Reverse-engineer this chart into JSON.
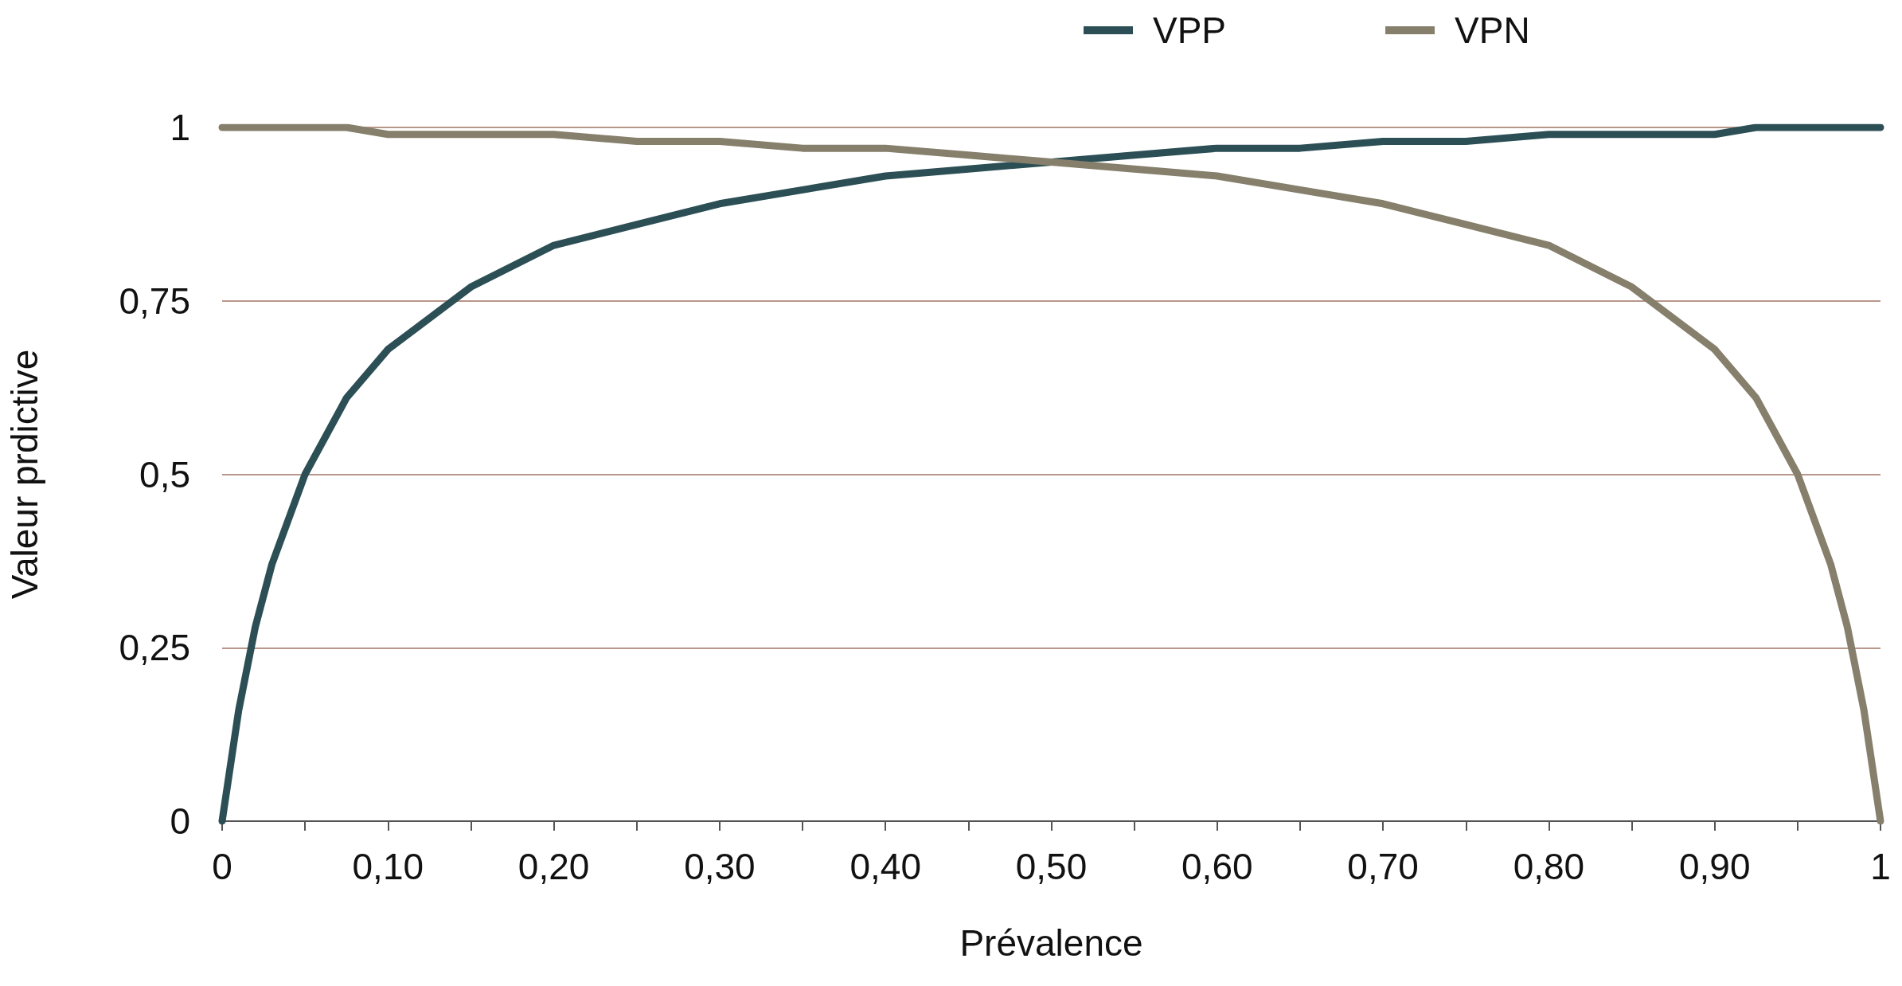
{
  "chart_data": {
    "type": "line",
    "xlabel": "Prévalence",
    "ylabel": "Valeur prdictive",
    "x": [
      0,
      0.01,
      0.02,
      0.03,
      0.05,
      0.075,
      0.1,
      0.15,
      0.2,
      0.25,
      0.3,
      0.35,
      0.4,
      0.45,
      0.5,
      0.55,
      0.6,
      0.65,
      0.7,
      0.75,
      0.8,
      0.85,
      0.9,
      0.925,
      0.95,
      0.97,
      0.98,
      0.99,
      1
    ],
    "series": [
      {
        "name": "VPP",
        "color": "#2c4f55",
        "values": [
          0,
          0.16,
          0.28,
          0.37,
          0.5,
          0.61,
          0.68,
          0.77,
          0.83,
          0.86,
          0.89,
          0.91,
          0.93,
          0.94,
          0.95,
          0.96,
          0.97,
          0.97,
          0.98,
          0.98,
          0.99,
          0.99,
          0.99,
          1,
          1,
          1,
          1,
          1,
          1
        ]
      },
      {
        "name": "VPN",
        "color": "#857f6b",
        "values": [
          1,
          1,
          1,
          1,
          1,
          1,
          0.99,
          0.99,
          0.99,
          0.98,
          0.98,
          0.97,
          0.97,
          0.96,
          0.95,
          0.94,
          0.93,
          0.91,
          0.89,
          0.86,
          0.83,
          0.77,
          0.68,
          0.61,
          0.5,
          0.37,
          0.28,
          0.16,
          0
        ]
      }
    ],
    "xlim": [
      0,
      1
    ],
    "xticks": [
      {
        "value": 0,
        "label": "0"
      },
      {
        "value": 0.05,
        "label": null
      },
      {
        "value": 0.1,
        "label": "0,10"
      },
      {
        "value": 0.15,
        "label": null
      },
      {
        "value": 0.2,
        "label": "0,20"
      },
      {
        "value": 0.25,
        "label": null
      },
      {
        "value": 0.3,
        "label": "0,30"
      },
      {
        "value": 0.35,
        "label": null
      },
      {
        "value": 0.4,
        "label": "0,40"
      },
      {
        "value": 0.45,
        "label": null
      },
      {
        "value": 0.5,
        "label": "0,50"
      },
      {
        "value": 0.55,
        "label": null
      },
      {
        "value": 0.6,
        "label": "0,60"
      },
      {
        "value": 0.65,
        "label": null
      },
      {
        "value": 0.7,
        "label": "0,70"
      },
      {
        "value": 0.75,
        "label": null
      },
      {
        "value": 0.8,
        "label": "0,80"
      },
      {
        "value": 0.85,
        "label": null
      },
      {
        "value": 0.9,
        "label": "0,90"
      },
      {
        "value": 0.95,
        "label": null
      },
      {
        "value": 1,
        "label": "1"
      }
    ],
    "ylim": [
      0,
      1
    ],
    "yticks": [
      {
        "value": 0,
        "label": "0"
      },
      {
        "value": 0.25,
        "label": "0,25"
      },
      {
        "value": 0.5,
        "label": "0,5"
      },
      {
        "value": 0.75,
        "label": "0,75"
      },
      {
        "value": 1,
        "label": "1"
      }
    ],
    "grid": "y",
    "legend": "top right",
    "marker": "none",
    "line_style": "solid"
  }
}
